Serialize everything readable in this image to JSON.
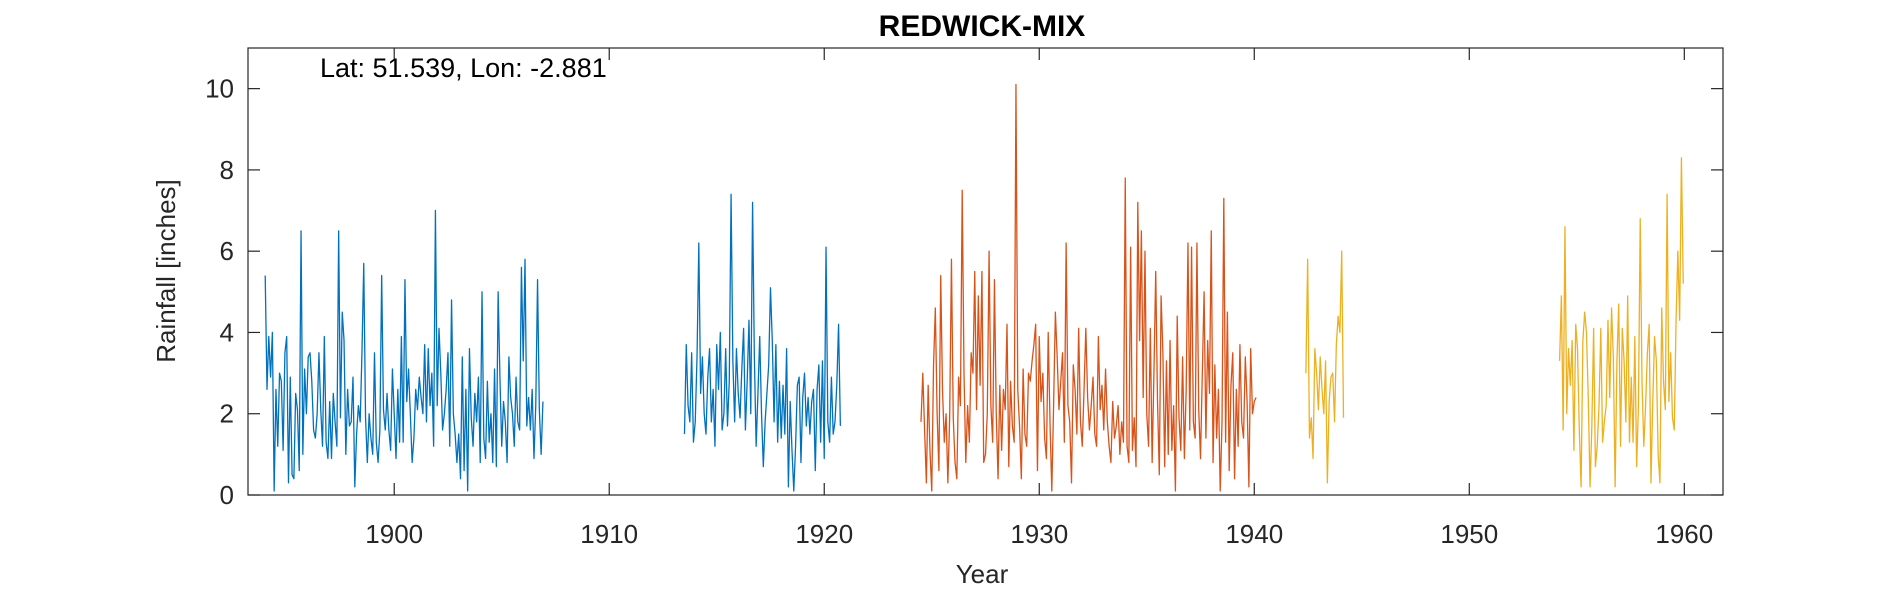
{
  "chart_data": {
    "type": "line",
    "title": "REDWICK-MIX",
    "xlabel": "Year",
    "ylabel": "Rainfall [inches]",
    "annotation": "Lat: 51.539, Lon: -2.881",
    "xlim": [
      1893.2,
      1961.8
    ],
    "ylim": [
      0,
      11
    ],
    "xticks": [
      1900,
      1910,
      1920,
      1930,
      1940,
      1950,
      1960
    ],
    "yticks": [
      0,
      2,
      4,
      6,
      8,
      10
    ],
    "xtick_labels": [
      "1900",
      "1910",
      "1920",
      "1930",
      "1940",
      "1950",
      "1960"
    ],
    "ytick_labels": [
      "0",
      "2",
      "4",
      "6",
      "8",
      "10"
    ],
    "grid": false,
    "legend": "none",
    "series": [
      {
        "color": "#0072BD",
        "segments": [
          {
            "start": 1894.0,
            "step": 0.0833333,
            "values": [
              5.4,
              2.6,
              3.9,
              2.9,
              4.0,
              0.1,
              2.6,
              1.2,
              3.0,
              2.8,
              1.1,
              3.5,
              3.9,
              0.3,
              2.9,
              0.5,
              0.4,
              2.5,
              2.1,
              0.6,
              6.5,
              1.0,
              3.1,
              2.0,
              3.4,
              3.5,
              2.8,
              1.6,
              1.4,
              2.0,
              3.5,
              2.1,
              1.2,
              3.9,
              1.3,
              0.9,
              2.3,
              0.9,
              2.5,
              1.8,
              1.2,
              6.5,
              1.9,
              4.5,
              3.8,
              1.0,
              2.6,
              1.7,
              1.8,
              2.9,
              0.2,
              1.5,
              2.2,
              1.8,
              3.5,
              5.7,
              1.9,
              0.8,
              2.0,
              1.4,
              1.0,
              3.5,
              1.3,
              0.8,
              1.6,
              5.4,
              2.1,
              1.6,
              2.5,
              1.6,
              1.1,
              3.1,
              2.0,
              0.9,
              2.6,
              1.3,
              3.9,
              1.3,
              5.3,
              2.3,
              3.1,
              2.0,
              0.8,
              1.4,
              2.6,
              2.1,
              2.9,
              2.4,
              2.0,
              3.7,
              1.8,
              3.6,
              2.2,
              3.0,
              1.2,
              7.0,
              2.2,
              4.1,
              3.0,
              1.6,
              2.0,
              2.6,
              3.5,
              1.2,
              4.8,
              2.0,
              1.5,
              0.8,
              1.5,
              0.4,
              3.4,
              0.6,
              2.6,
              0.1,
              3.6,
              1.9,
              1.2,
              2.5,
              1.8,
              2.9,
              0.8,
              5.0,
              1.4,
              0.9,
              2.8,
              1.3,
              2.0,
              0.8,
              3.1,
              0.7,
              5.0,
              2.9,
              1.2,
              2.3,
              1.8,
              0.8,
              3.4,
              2.4,
              2.0,
              1.2,
              2.9,
              1.8,
              1.6,
              5.6,
              3.3,
              5.8,
              1.7,
              2.4,
              1.6,
              2.6,
              0.9,
              2.2,
              5.3,
              2.1,
              1.0,
              2.3
            ]
          },
          {
            "start": 1913.5,
            "step": 0.0833333,
            "values": [
              1.5,
              3.7,
              2.2,
              1.8,
              3.5,
              1.3,
              1.8,
              3.4,
              6.2,
              2.5,
              3.4,
              2.0,
              1.5,
              2.9,
              3.6,
              1.8,
              2.6,
              1.2,
              3.7,
              2.6,
              4.0,
              1.6,
              2.0,
              3.6,
              1.7,
              2.8,
              7.4,
              3.3,
              1.8,
              3.6,
              2.5,
              1.9,
              3.1,
              4.1,
              1.6,
              2.8,
              4.3,
              2.0,
              7.2,
              3.4,
              1.2,
              2.5,
              3.9,
              2.0,
              0.7,
              1.8,
              2.5,
              3.2,
              5.1,
              3.8,
              1.8,
              3.7,
              1.3,
              2.8,
              1.4,
              2.7,
              1.5,
              3.6,
              0.2,
              2.3,
              1.1,
              0.1,
              1.2,
              2.7,
              2.9,
              0.8,
              2.4,
              3.0,
              1.7,
              2.4,
              1.5,
              2.3,
              2.6,
              0.6,
              2.6,
              3.2,
              1.3,
              3.3,
              0.9,
              6.1,
              1.8,
              1.3,
              2.9,
              1.5,
              1.8,
              2.7,
              4.2,
              1.7
            ]
          }
        ]
      },
      {
        "color": "#D95319",
        "segments": [
          {
            "start": 1924.5,
            "step": 0.0833333,
            "values": [
              1.8,
              3.0,
              1.6,
              0.3,
              2.7,
              1.1,
              0.1,
              3.2,
              4.6,
              2.0,
              0.6,
              5.4,
              2.6,
              1.3,
              2.0,
              0.3,
              1.9,
              5.8,
              1.9,
              0.8,
              0.4,
              2.9,
              2.2,
              7.5,
              3.0,
              0.8,
              2.2,
              1.3,
              3.5,
              3.0,
              5.5,
              2.1,
              4.9,
              2.7,
              5.5,
              0.8,
              1.0,
              2.0,
              6.0,
              2.2,
              1.3,
              5.3,
              2.0,
              0.4,
              2.7,
              1.1,
              2.6,
              2.1,
              4.2,
              0.7,
              2.8,
              1.7,
              1.3,
              10.1,
              2.6,
              1.7,
              0.4,
              3.1,
              1.5,
              1.2,
              3.0,
              2.8,
              3.3,
              3.7,
              4.2,
              0.6,
              3.9,
              2.3,
              3.0,
              1.4,
              0.9,
              4.0,
              1.8,
              0.1,
              2.2,
              4.5,
              3.4,
              2.1,
              2.8,
              3.5,
              1.3,
              6.2,
              2.2,
              1.8,
              0.3,
              3.2,
              2.6,
              1.5,
              4.1,
              1.8,
              1.2,
              2.6,
              4.1,
              2.4,
              1.6,
              2.2,
              2.9,
              1.5,
              1.2,
              3.9,
              2.1,
              2.7,
              1.6,
              3.1,
              1.8,
              1.2,
              0.8,
              2.3,
              1.4,
              1.7,
              2.2,
              1.0,
              1.8,
              1.3,
              7.8,
              1.2,
              0.8,
              6.1,
              1.1,
              1.9,
              0.7,
              7.2,
              3.8,
              6.5,
              2.4,
              6.0,
              2.0,
              1.2,
              4.1,
              0.8,
              3.0,
              5.5,
              2.3,
              0.5,
              4.9,
              3.5,
              0.7,
              3.3,
              1.0,
              3.8,
              1.1,
              2.2,
              0.1,
              4.4,
              1.9,
              1.1,
              3.4,
              0.9,
              2.6,
              6.2,
              1.6,
              6.1,
              1.8,
              1.4,
              6.2,
              2.1,
              0.9,
              3.0,
              5.0,
              1.4,
              3.8,
              2.5,
              6.5,
              0.8,
              3.2,
              1.4,
              2.6,
              0.1,
              1.8,
              7.3,
              1.3,
              4.5,
              0.6,
              2.7,
              3.5,
              0.4,
              2.6,
              1.2,
              3.7,
              1.8,
              1.4,
              3.4,
              2.3,
              0.2,
              3.6,
              2.0,
              2.3,
              2.4
            ]
          }
        ]
      },
      {
        "color": "#EDB120",
        "segments": [
          {
            "start": 1942.4,
            "step": 0.0833333,
            "values": [
              3.0,
              5.8,
              1.4,
              1.9,
              0.9,
              3.6,
              3.0,
              2.1,
              3.4,
              2.6,
              2.0,
              3.3,
              0.3,
              2.3,
              2.9,
              3.0,
              1.8,
              3.7,
              4.4,
              4.0,
              6.0,
              1.9
            ]
          },
          {
            "start": 1954.2,
            "step": 0.0833333,
            "values": [
              3.3,
              4.9,
              1.6,
              6.6,
              2.0,
              3.6,
              2.7,
              3.8,
              1.1,
              4.2,
              3.6,
              1.6,
              0.2,
              3.8,
              4.5,
              4.0,
              2.4,
              0.2,
              1.7,
              4.1,
              0.7,
              1.2,
              2.2,
              4.1,
              1.3,
              1.8,
              2.2,
              4.3,
              2.4,
              4.6,
              3.4,
              0.2,
              3.3,
              4.7,
              1.2,
              4.1,
              3.3,
              1.8,
              4.9,
              1.3,
              2.9,
              1.3,
              3.9,
              0.7,
              2.2,
              6.8,
              2.8,
              1.2,
              2.2,
              3.5,
              4.2,
              0.3,
              2.3,
              3.9,
              3.3,
              1.0,
              0.3,
              4.6,
              2.8,
              2.1,
              7.4,
              2.3,
              3.5,
              1.9,
              1.6,
              4.3,
              6.0,
              4.3,
              8.3,
              5.2
            ]
          }
        ]
      }
    ]
  }
}
